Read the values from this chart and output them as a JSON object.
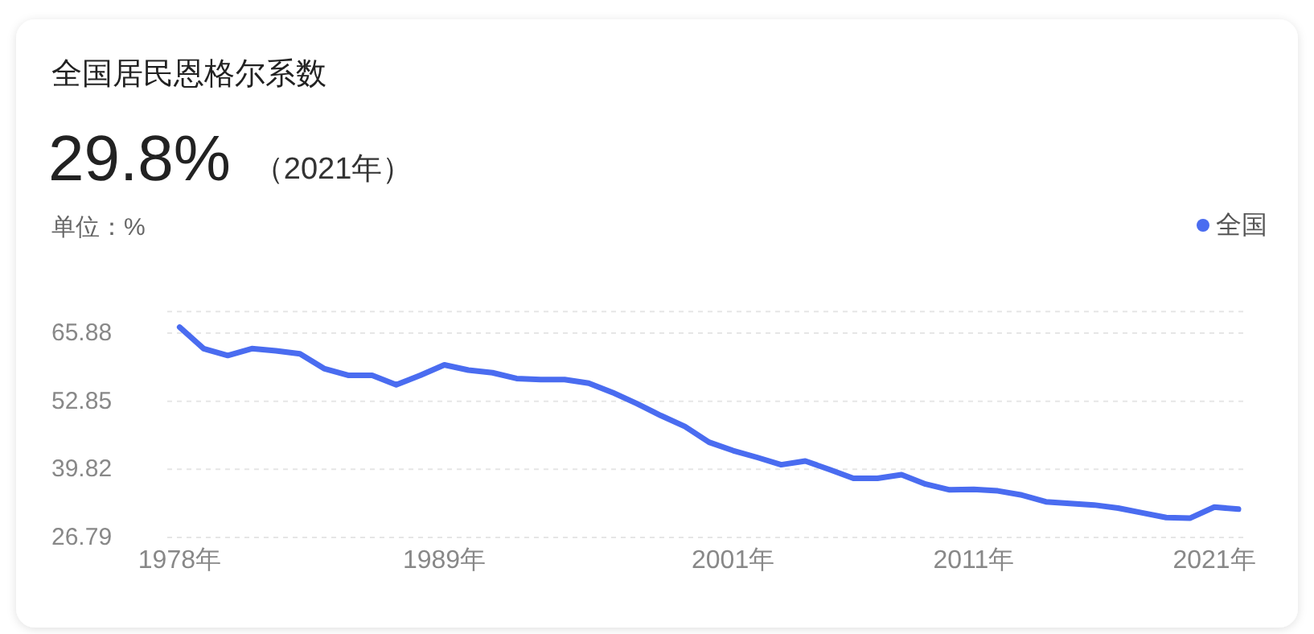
{
  "chart_data": {
    "type": "line",
    "title": "全国居民恩格尔系数",
    "subtitle": "29.8%",
    "annotations": [
      "（2021年）"
    ],
    "ylabel": "单位：%",
    "categories": [
      "1978年",
      null,
      null,
      null,
      null,
      null,
      null,
      null,
      null,
      null,
      null,
      "1989年",
      null,
      null,
      null,
      null,
      null,
      null,
      null,
      null,
      null,
      null,
      null,
      "2001年",
      null,
      null,
      null,
      null,
      null,
      null,
      null,
      null,
      null,
      "2011年",
      null,
      null,
      null,
      null,
      null,
      null,
      null,
      null,
      null,
      "2021年",
      null
    ],
    "series": [
      {
        "name": "全国",
        "color": "#4a6cf0",
        "values": [
          67.0,
          62.9,
          61.6,
          62.9,
          62.5,
          61.9,
          59.1,
          57.8,
          57.8,
          56.0,
          57.8,
          59.8,
          58.8,
          58.3,
          57.2,
          57.0,
          57.0,
          56.3,
          54.5,
          52.4,
          50.1,
          48.0,
          45.0,
          43.4,
          42.1,
          40.7,
          41.4,
          39.8,
          38.1,
          38.1,
          38.8,
          37.0,
          35.9,
          36.0,
          35.7,
          34.9,
          33.6,
          33.3,
          33.0,
          32.4,
          31.5,
          30.6,
          30.5,
          32.6,
          32.2
        ]
      }
    ],
    "ylim": [
      26.79,
      70
    ],
    "yticks": [
      26.79,
      39.82,
      52.85,
      65.88,
      {
        "value": 70,
        "label": null
      }
    ],
    "grid": "y",
    "legend": "top right",
    "marker": "none",
    "line_style": "solid"
  }
}
